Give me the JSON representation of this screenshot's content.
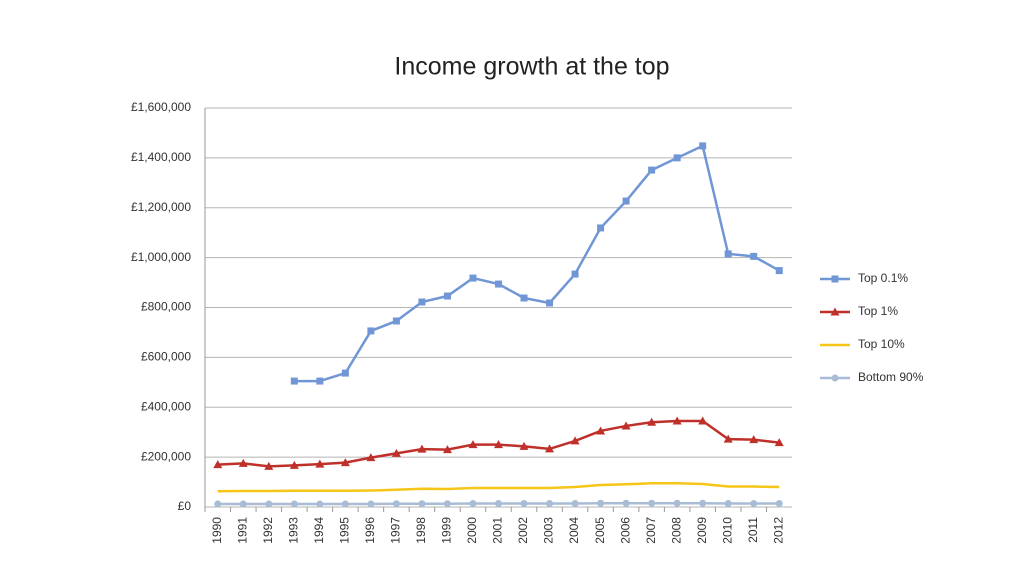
{
  "chart_data": {
    "type": "line",
    "title": "Income growth at the top",
    "categories": [
      "1990",
      "1991",
      "1992",
      "1993",
      "1994",
      "1995",
      "1996",
      "1997",
      "1998",
      "1999",
      "2000",
      "2001",
      "2002",
      "2003",
      "2004",
      "2005",
      "2006",
      "2007",
      "2008",
      "2009",
      "2010",
      "2011",
      "2012"
    ],
    "series": [
      {
        "name": "Top 0.1%",
        "color": "#7096d6",
        "marker": "square",
        "values": [
          null,
          null,
          null,
          505000,
          505000,
          537000,
          706000,
          746000,
          822000,
          846000,
          918000,
          894000,
          838000,
          818000,
          934000,
          1119000,
          1227000,
          1351000,
          1400000,
          1448000,
          1015000,
          1005000,
          948000
        ]
      },
      {
        "name": "Top 1%",
        "color": "#c0302a",
        "marker": "triangle",
        "values": [
          170000,
          175000,
          163000,
          167000,
          172000,
          178000,
          198000,
          215000,
          232000,
          230000,
          250000,
          250000,
          243000,
          233000,
          265000,
          305000,
          325000,
          340000,
          345000,
          345000,
          272000,
          270000,
          258000
        ]
      },
      {
        "name": "Top 10%",
        "color": "#f5c518",
        "marker": "none",
        "values": [
          63000,
          64000,
          64000,
          65000,
          65000,
          65000,
          66000,
          69000,
          73000,
          72000,
          76000,
          76000,
          76000,
          76000,
          80000,
          88000,
          91000,
          95000,
          95000,
          92000,
          82000,
          82000,
          80000
        ]
      },
      {
        "name": "Bottom 90%",
        "color": "#a9bcd6",
        "marker": "circle",
        "values": [
          12000,
          12000,
          12000,
          12000,
          12000,
          12000,
          12000,
          13000,
          13000,
          13000,
          14000,
          14000,
          14000,
          14000,
          14000,
          15000,
          15000,
          15000,
          15000,
          15000,
          14000,
          14000,
          14000
        ]
      }
    ],
    "ylim": [
      0,
      1600000
    ],
    "yticks": [
      {
        "value": 0,
        "label": "£0"
      },
      {
        "value": 200000,
        "label": "£200,000"
      },
      {
        "value": 400000,
        "label": "£400,000"
      },
      {
        "value": 600000,
        "label": "£600,000"
      },
      {
        "value": 800000,
        "label": "£800,000"
      },
      {
        "value": 1000000,
        "label": "£1,000,000"
      },
      {
        "value": 1200000,
        "label": "£1,200,000"
      },
      {
        "value": 1400000,
        "label": "£1,400,000"
      },
      {
        "value": 1600000,
        "label": "£1,600,000"
      }
    ],
    "grid": true,
    "legend": "right"
  }
}
